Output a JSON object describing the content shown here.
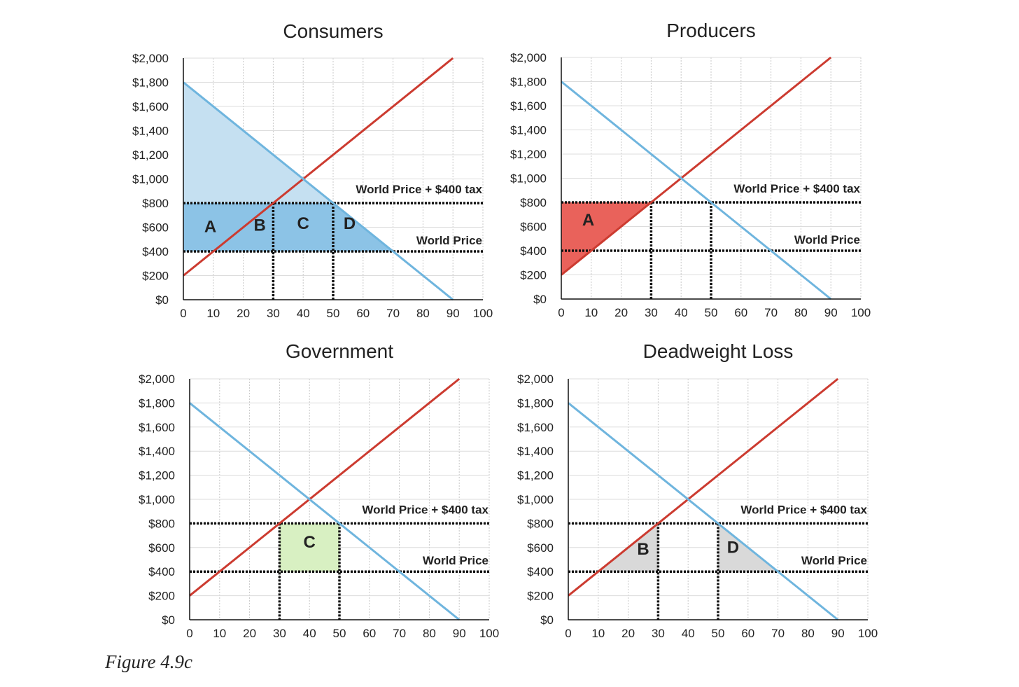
{
  "colors": {
    "supply": "#cc3b30",
    "demand": "#6fb5de",
    "consumer_full": "#c5e0f1",
    "consumer_band": "#8cc3e6",
    "producer_surplus": "#e9625b",
    "producer_light": "#f0aaaa",
    "government": "#d8f0c2",
    "deadweight": "#d9d9d9"
  },
  "caption": "Figure 4.9c",
  "chart_data": [
    {
      "type": "line",
      "title": "Consumers",
      "xlim": [
        0,
        100
      ],
      "ylim": [
        0,
        2000
      ],
      "x_ticks": [
        "0",
        "10",
        "20",
        "30",
        "40",
        "50",
        "60",
        "70",
        "80",
        "90",
        "100"
      ],
      "y_ticks": [
        "$0",
        "$200",
        "$400",
        "$600",
        "$800",
        "$1,000",
        "$1,200",
        "$1,400",
        "$1,600",
        "$1,800",
        "$2,000"
      ],
      "grid": true,
      "series": [
        {
          "role": "supply",
          "x": [
            0,
            90
          ],
          "y": [
            200,
            2000
          ]
        },
        {
          "role": "demand",
          "x": [
            0,
            90
          ],
          "y": [
            1800,
            0
          ]
        }
      ],
      "price_lines": [
        {
          "label": "World Price + $400 tax",
          "y": 800
        },
        {
          "label": "World Price",
          "y": 400
        }
      ],
      "quantity_markers": [
        30,
        50
      ],
      "regions": [
        {
          "fill": "consumer_full",
          "points": [
            [
              0,
              1800
            ],
            [
              70,
              400
            ],
            [
              0,
              400
            ]
          ]
        },
        {
          "fill": "consumer_band",
          "points": [
            [
              0,
              800
            ],
            [
              50,
              800
            ],
            [
              70,
              400
            ],
            [
              0,
              400
            ]
          ]
        }
      ],
      "region_labels": [
        {
          "text": "A",
          "x": 9,
          "y": 560
        },
        {
          "text": "B",
          "x": 25.5,
          "y": 570
        },
        {
          "text": "C",
          "x": 40,
          "y": 585
        },
        {
          "text": "D",
          "x": 55.5,
          "y": 585
        }
      ]
    },
    {
      "type": "line",
      "title": "Producers",
      "xlim": [
        0,
        100
      ],
      "ylim": [
        0,
        2000
      ],
      "x_ticks": [
        "0",
        "10",
        "20",
        "30",
        "40",
        "50",
        "60",
        "70",
        "80",
        "90",
        "100"
      ],
      "y_ticks": [
        "$0",
        "$200",
        "$400",
        "$600",
        "$800",
        "$1,000",
        "$1,200",
        "$1,400",
        "$1,600",
        "$1,800",
        "$2,000"
      ],
      "grid": true,
      "series": [
        {
          "role": "supply",
          "x": [
            0,
            90
          ],
          "y": [
            200,
            2000
          ]
        },
        {
          "role": "demand",
          "x": [
            0,
            90
          ],
          "y": [
            1800,
            0
          ]
        }
      ],
      "price_lines": [
        {
          "label": "World Price + $400 tax",
          "y": 800
        },
        {
          "label": "World Price",
          "y": 400
        }
      ],
      "quantity_markers": [
        30,
        50
      ],
      "regions": [
        {
          "fill": "producer_light",
          "points": [
            [
              0,
              200
            ],
            [
              10,
              400
            ],
            [
              0,
              400
            ]
          ]
        },
        {
          "fill": "producer_surplus",
          "points": [
            [
              0,
              800
            ],
            [
              30,
              800
            ],
            [
              0,
              200
            ]
          ]
        }
      ],
      "region_labels": [
        {
          "text": "A",
          "x": 9,
          "y": 610
        }
      ]
    },
    {
      "type": "line",
      "title": "Government",
      "xlim": [
        0,
        100
      ],
      "ylim": [
        0,
        2000
      ],
      "x_ticks": [
        "0",
        "10",
        "20",
        "30",
        "40",
        "50",
        "60",
        "70",
        "80",
        "90",
        "100"
      ],
      "y_ticks": [
        "$0",
        "$200",
        "$400",
        "$600",
        "$800",
        "$1,000",
        "$1,200",
        "$1,400",
        "$1,600",
        "$1,800",
        "$2,000"
      ],
      "grid": true,
      "series": [
        {
          "role": "supply",
          "x": [
            0,
            90
          ],
          "y": [
            200,
            2000
          ]
        },
        {
          "role": "demand",
          "x": [
            0,
            90
          ],
          "y": [
            1800,
            0
          ]
        }
      ],
      "price_lines": [
        {
          "label": "World Price + $400 tax",
          "y": 800
        },
        {
          "label": "World Price",
          "y": 400
        }
      ],
      "quantity_markers": [
        30,
        50
      ],
      "regions": [
        {
          "fill": "government",
          "points": [
            [
              30,
              800
            ],
            [
              50,
              800
            ],
            [
              50,
              400
            ],
            [
              30,
              400
            ]
          ]
        }
      ],
      "region_labels": [
        {
          "text": "C",
          "x": 40,
          "y": 600
        }
      ]
    },
    {
      "type": "line",
      "title": "Deadweight Loss",
      "xlim": [
        0,
        100
      ],
      "ylim": [
        0,
        2000
      ],
      "x_ticks": [
        "0",
        "10",
        "20",
        "30",
        "40",
        "50",
        "60",
        "70",
        "80",
        "90",
        "100"
      ],
      "y_ticks": [
        "$0",
        "$200",
        "$400",
        "$600",
        "$800",
        "$1,000",
        "$1,200",
        "$1,400",
        "$1,600",
        "$1,800",
        "$2,000"
      ],
      "grid": true,
      "series": [
        {
          "role": "supply",
          "x": [
            0,
            90
          ],
          "y": [
            200,
            2000
          ]
        },
        {
          "role": "demand",
          "x": [
            0,
            90
          ],
          "y": [
            1800,
            0
          ]
        }
      ],
      "price_lines": [
        {
          "label": "World Price + $400 tax",
          "y": 800
        },
        {
          "label": "World Price",
          "y": 400
        }
      ],
      "quantity_markers": [
        30,
        50
      ],
      "regions": [
        {
          "fill": "deadweight",
          "points": [
            [
              10,
              400
            ],
            [
              30,
              800
            ],
            [
              30,
              400
            ]
          ]
        },
        {
          "fill": "deadweight",
          "points": [
            [
              50,
              800
            ],
            [
              50,
              400
            ],
            [
              70,
              400
            ]
          ]
        }
      ],
      "region_labels": [
        {
          "text": "B",
          "x": 25,
          "y": 540
        },
        {
          "text": "D",
          "x": 55,
          "y": 555
        }
      ]
    }
  ]
}
